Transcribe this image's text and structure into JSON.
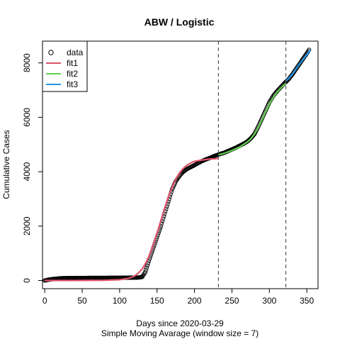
{
  "chart_data": {
    "type": "scatter",
    "title": "ABW / Logistic",
    "xlabel": "Days since 2020-03-29",
    "subtitle": "Simple Moving Avarage (window size = 7)",
    "ylabel": "Cumulative Cases",
    "xlim": [
      -3,
      365
    ],
    "ylim": [
      -300,
      8800
    ],
    "xticks": [
      0,
      50,
      100,
      150,
      200,
      250,
      300,
      350
    ],
    "yticks": [
      0,
      2000,
      4000,
      6000,
      8000
    ],
    "vlines": [
      232,
      322
    ],
    "legend": {
      "position": "top-left",
      "entries": [
        {
          "label": "data",
          "kind": "point",
          "color": "#000000"
        },
        {
          "label": "fit1",
          "kind": "line",
          "color": "#DF536B"
        },
        {
          "label": "fit2",
          "kind": "line",
          "color": "#61D04F"
        },
        {
          "label": "fit3",
          "kind": "line",
          "color": "#2297E6"
        }
      ]
    },
    "data_anchors": [
      [
        0,
        0
      ],
      [
        5,
        30
      ],
      [
        10,
        50
      ],
      [
        20,
        80
      ],
      [
        30,
        90
      ],
      [
        60,
        95
      ],
      [
        100,
        100
      ],
      [
        125,
        110
      ],
      [
        130,
        130
      ],
      [
        134,
        300
      ],
      [
        140,
        800
      ],
      [
        145,
        1200
      ],
      [
        150,
        1600
      ],
      [
        155,
        2000
      ],
      [
        160,
        2450
      ],
      [
        165,
        2900
      ],
      [
        170,
        3350
      ],
      [
        175,
        3650
      ],
      [
        180,
        3850
      ],
      [
        185,
        4000
      ],
      [
        190,
        4100
      ],
      [
        195,
        4170
      ],
      [
        200,
        4240
      ],
      [
        205,
        4320
      ],
      [
        210,
        4390
      ],
      [
        215,
        4450
      ],
      [
        220,
        4500
      ],
      [
        225,
        4560
      ],
      [
        230,
        4610
      ],
      [
        235,
        4660
      ],
      [
        240,
        4700
      ],
      [
        245,
        4760
      ],
      [
        250,
        4820
      ],
      [
        255,
        4880
      ],
      [
        260,
        4950
      ],
      [
        265,
        5020
      ],
      [
        270,
        5100
      ],
      [
        275,
        5220
      ],
      [
        280,
        5380
      ],
      [
        285,
        5650
      ],
      [
        290,
        5950
      ],
      [
        295,
        6250
      ],
      [
        300,
        6550
      ],
      [
        305,
        6780
      ],
      [
        310,
        6950
      ],
      [
        315,
        7100
      ],
      [
        320,
        7250
      ],
      [
        325,
        7380
      ],
      [
        330,
        7550
      ],
      [
        335,
        7750
      ],
      [
        340,
        7950
      ],
      [
        345,
        8150
      ],
      [
        350,
        8350
      ],
      [
        353,
        8480
      ]
    ],
    "series": [
      {
        "name": "fit1",
        "color": "#DF536B",
        "points": [
          [
            0,
            0
          ],
          [
            40,
            2
          ],
          [
            80,
            10
          ],
          [
            100,
            30
          ],
          [
            110,
            70
          ],
          [
            115,
            110
          ],
          [
            120,
            170
          ],
          [
            125,
            270
          ],
          [
            130,
            420
          ],
          [
            135,
            650
          ],
          [
            140,
            950
          ],
          [
            145,
            1320
          ],
          [
            150,
            1740
          ],
          [
            155,
            2200
          ],
          [
            160,
            2650
          ],
          [
            165,
            3070
          ],
          [
            170,
            3430
          ],
          [
            175,
            3730
          ],
          [
            180,
            3960
          ],
          [
            185,
            4120
          ],
          [
            190,
            4240
          ],
          [
            195,
            4320
          ],
          [
            200,
            4380
          ],
          [
            210,
            4430
          ],
          [
            220,
            4465
          ],
          [
            232,
            4485
          ]
        ]
      },
      {
        "name": "fit2",
        "color": "#61D04F",
        "points": [
          [
            232,
            4620
          ],
          [
            240,
            4680
          ],
          [
            250,
            4780
          ],
          [
            260,
            4900
          ],
          [
            270,
            5080
          ],
          [
            275,
            5200
          ],
          [
            280,
            5380
          ],
          [
            285,
            5620
          ],
          [
            290,
            5900
          ],
          [
            295,
            6200
          ],
          [
            300,
            6480
          ],
          [
            305,
            6720
          ],
          [
            310,
            6910
          ],
          [
            315,
            7060
          ],
          [
            322,
            7250
          ]
        ]
      },
      {
        "name": "fit3",
        "color": "#2297E6",
        "points": [
          [
            322,
            7330
          ],
          [
            330,
            7560
          ],
          [
            340,
            7950
          ],
          [
            350,
            8300
          ],
          [
            355,
            8480
          ]
        ]
      }
    ]
  }
}
